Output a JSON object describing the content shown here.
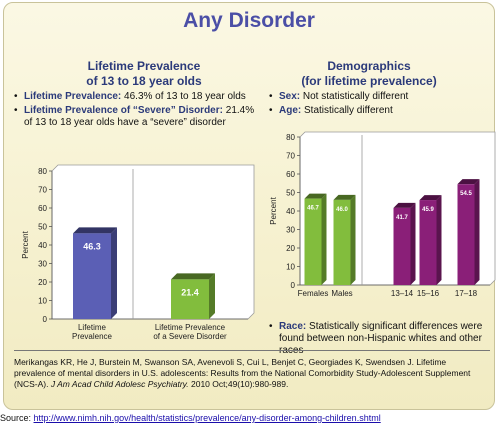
{
  "title": "Any Disorder",
  "left": {
    "heading_line1": "Lifetime Prevalence",
    "heading_line2": "of 13 to 18 year olds",
    "bullet1_label": "Lifetime Prevalence:",
    "bullet1_text": " 46.3% of 13 to 18 year olds",
    "bullet2_label": "Lifetime Prevalence of “Severe” Disorder:",
    "bullet2_text": " 21.4% of 13 to 18 year olds have a “severe” disorder"
  },
  "right": {
    "heading_line1": "Demographics",
    "heading_line2": "(for lifetime prevalence)",
    "sex_label": "Sex:",
    "sex_text": " Not statistically different",
    "age_label": "Age:",
    "age_text": " Statistically different",
    "race_label": "Race:",
    "race_text": " Statistically significant differences were found between non-Hispanic whites and other races"
  },
  "reference": {
    "text1": "Merikangas KR, He J, Burstein M, Swanson SA, Avenevoli S, Cui L, Benjet C, Georgiades K, Swendsen J. Lifetime prevalence of mental disorders in U.S. adolescents: Results from the National Comorbidity Study-Adolescent Supplement (NCS-A). ",
    "journal": "J Am Acad Child Adolesc Psychiatry.",
    "text2": " 2010 Oct;49(10):980-989."
  },
  "source": {
    "label": "Source: ",
    "link": "http://www.nimh.nih.gov/health/statistics/prevalence/any-disorder-among-children.shtml"
  },
  "colors": {
    "title": "#4b4fa6",
    "blue_bar": "#5b5fb5",
    "green_bar": "#82bd3d",
    "purple_bar": "#8a1f78"
  },
  "chart_data": [
    {
      "type": "bar",
      "ylabel": "Percent",
      "ylim": [
        0,
        80
      ],
      "yticks": [
        0,
        10,
        20,
        30,
        40,
        50,
        60,
        70,
        80
      ],
      "categories": [
        "Lifetime\nPrevalence",
        "Lifetime Prevalence\nof a Severe Disorder"
      ],
      "values": [
        46.3,
        21.4
      ],
      "value_labels": [
        "46.3",
        "21.4"
      ],
      "colors": [
        "#5b5fb5",
        "#82bd3d"
      ],
      "grid": false
    },
    {
      "type": "bar",
      "ylabel": "Percent",
      "ylim": [
        0,
        80
      ],
      "yticks": [
        0,
        10,
        20,
        30,
        40,
        50,
        60,
        70,
        80
      ],
      "categories": [
        "Females",
        "Males",
        "13–14",
        "15–16",
        "17–18"
      ],
      "values": [
        46.7,
        46.0,
        41.7,
        45.9,
        54.5
      ],
      "value_labels": [
        "46.7",
        "46.0",
        "41.7",
        "45.9",
        "54.5"
      ],
      "colors": [
        "#82bd3d",
        "#82bd3d",
        "#8a1f78",
        "#8a1f78",
        "#8a1f78"
      ],
      "grid": false
    }
  ]
}
